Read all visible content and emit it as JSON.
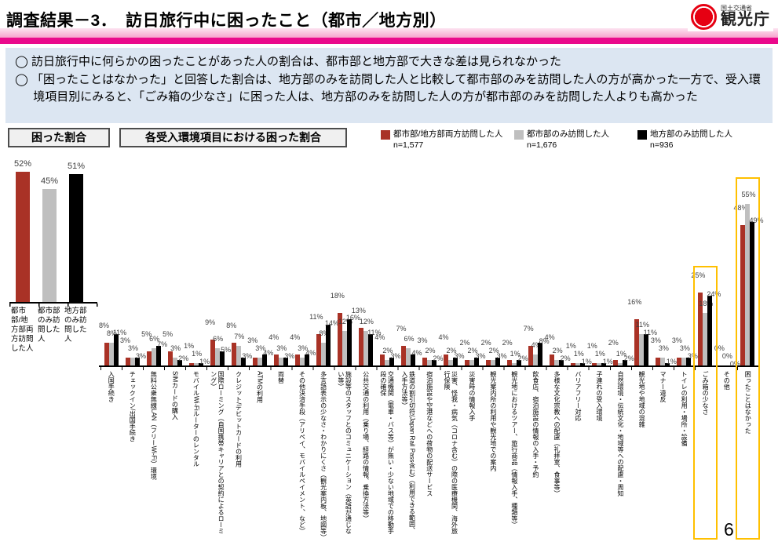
{
  "header": {
    "title": "調査結果－3．　訪日旅行中に困ったこと（都市／地方別）",
    "logo": {
      "ministry": "国土交通省",
      "agency": "観光庁"
    },
    "accent_pink": "#ea0a8c"
  },
  "summary": {
    "bullet_marker": "◯",
    "bullets": [
      "訪日旅行中に何らかの困ったことがあった人の割合は、都市部と地方部で大きな差は見られなかった",
      "「困ったことはなかった」と回答した割合は、地方部のみを訪問した人と比較して都市部のみを訪問した人の方が高かった一方で、受入環境項目別にみると、「ごみ箱の少なさ」に困った人は、地方部のみを訪問した人の方が都市部のみを訪問した人よりも高かった"
    ]
  },
  "panel": {
    "left_box_label": "困った割合",
    "right_box_label": "各受入環境項目における困った割合"
  },
  "legend": {
    "items": [
      {
        "label": "都市部/地方部両方訪問した人",
        "n": "n=1,577",
        "color": "#a93226"
      },
      {
        "label": "都市部のみ訪問した人",
        "n": "n=1,676",
        "color": "#bfbfbf"
      },
      {
        "label": "地方部のみ訪問した人",
        "n": "n=936",
        "color": "#000000"
      }
    ]
  },
  "chart_data": [
    {
      "type": "bar",
      "title": "困った割合",
      "unit": "%",
      "categories": [
        "都市部/地方部両方訪問した人",
        "都市部のみ訪問した人",
        "地方部のみ訪問した人"
      ],
      "values": [
        52,
        45,
        51
      ],
      "colors": [
        "#a93226",
        "#bfbfbf",
        "#000000"
      ],
      "ylim": [
        0,
        60
      ]
    },
    {
      "type": "bar",
      "title": "各受入環境項目における困った割合",
      "unit": "%",
      "ylim": [
        0,
        60
      ],
      "legend_position": "top-right",
      "categories": [
        "入国手続き",
        "チェックイン/出国手続き",
        "無料公衆無線LAN（フリーWi-Fi）環境",
        "SIMカードの購入",
        "モバイルWi-Fiルーターのレンタル",
        "国際ローミング（自国携帯キャリアとの契約によるローミング）",
        "クレジット/デビットカードの利用",
        "ATMの利用",
        "両替",
        "その他決済手段（アリペイ、モバイルペイメント、など）",
        "多言語表示の少なさ・わかりにくさ（観光案内板、地図等）",
        "施設等のスタッフとのコミュニケーション（英語が通じない等）",
        "公共交通の利用（乗り場、経路の情報、乗換方法等）",
        "交通機関（電車・バス等）が無い・少ない地域での移動手段の確保",
        "鉄道の割引切符(Japan Rail Pass含む)（利用できる範囲、入手方法等）",
        "宿泊施設や空港などへの荷物の配送サービス",
        "災害、怪我・病気（コロナ含む）の際の医療機関、海外旅行保険",
        "災害時の情報入手",
        "観光案内所の利用や観光地での案内",
        "観光地におけるツアー、旅行商品（情報入手、種類等）",
        "飲食店、宿泊施設の情報の入手・予約",
        "多様な文化宗教への配慮（礼拝室、食事等）",
        "バリアフリー対応",
        "子連れの受入環境",
        "自然環境・伝統文化・地域等への配慮・周知",
        "観光地や地域の混雑",
        "マナー違反",
        "トイレの利用・場所・設備",
        "ごみ箱の少なさ",
        "その他",
        "困ったことはなかった"
      ],
      "series": [
        {
          "name": "都市部/地方部両方訪問した人",
          "color": "#a93226",
          "values": [
            8,
            3,
            5,
            5,
            1,
            9,
            8,
            3,
            4,
            4,
            11,
            18,
            13,
            4,
            7,
            3,
            4,
            2,
            2,
            2,
            7,
            4,
            1,
            1,
            2,
            16,
            3,
            3,
            25,
            0,
            48
          ]
        },
        {
          "name": "都市部のみ訪問した人",
          "color": "#bfbfbf",
          "values": [
            8,
            3,
            6,
            3,
            1,
            6,
            7,
            3,
            3,
            3,
            8,
            12,
            12,
            2,
            6,
            2,
            2,
            2,
            2,
            1,
            4,
            2,
            1,
            1,
            1,
            11,
            3,
            3,
            18,
            0,
            55
          ]
        },
        {
          "name": "地方部のみ訪問した人",
          "color": "#000000",
          "values": [
            11,
            3,
            7,
            2,
            1,
            5,
            3,
            4,
            3,
            4,
            14,
            16,
            11,
            3,
            4,
            2,
            3,
            3,
            3,
            2,
            8,
            2,
            1,
            1,
            2,
            11,
            1,
            3,
            24,
            0,
            49
          ]
        }
      ],
      "highlighted_categories": [
        "ごみ箱の少なさ",
        "困ったことはなかった"
      ],
      "highlight_color": "#ffc000"
    }
  ],
  "page": {
    "number": "6"
  }
}
